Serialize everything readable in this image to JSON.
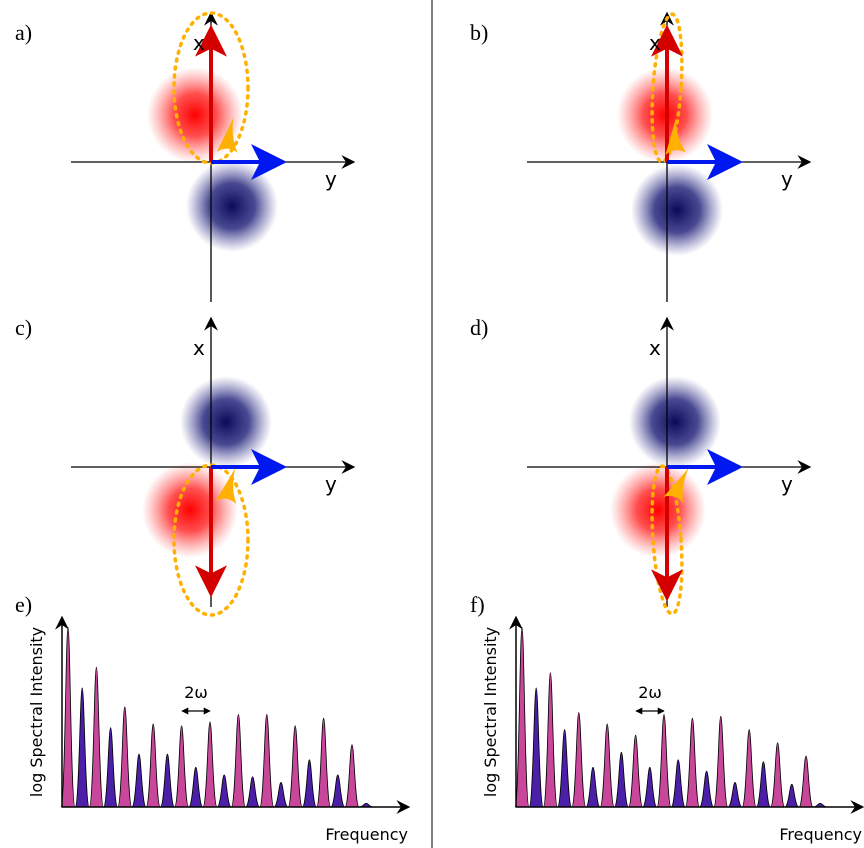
{
  "panels": [
    {
      "label": "a)",
      "x_label": "x",
      "y_label": "y"
    },
    {
      "label": "b)",
      "x_label": "x",
      "y_label": "y"
    },
    {
      "label": "c)",
      "x_label": "x",
      "y_label": "y"
    },
    {
      "label": "d)",
      "x_label": "x",
      "y_label": "y"
    }
  ],
  "spectra": [
    {
      "label": "e)",
      "y_label": "log Spectral Intensity",
      "x_label": "Frequency",
      "spacing_label": "2ω",
      "colors": [
        "#c8479a",
        "#4b1fa8"
      ],
      "peaks": [
        0.95,
        0.63,
        0.74,
        0.42,
        0.53,
        0.28,
        0.44,
        0.28,
        0.43,
        0.21,
        0.45,
        0.17,
        0.49,
        0.16,
        0.49,
        0.13,
        0.43,
        0.25,
        0.47,
        0.17,
        0.33,
        0.02
      ]
    },
    {
      "label": "f)",
      "y_label": "log Spectral Intensity",
      "x_label": "Frequency",
      "spacing_label": "2ω",
      "colors": [
        "#c8479a",
        "#4b1fa8"
      ],
      "peaks": [
        0.95,
        0.63,
        0.71,
        0.41,
        0.5,
        0.21,
        0.44,
        0.29,
        0.38,
        0.21,
        0.49,
        0.25,
        0.47,
        0.19,
        0.48,
        0.13,
        0.41,
        0.24,
        0.34,
        0.12,
        0.27,
        0.02
      ]
    }
  ]
}
